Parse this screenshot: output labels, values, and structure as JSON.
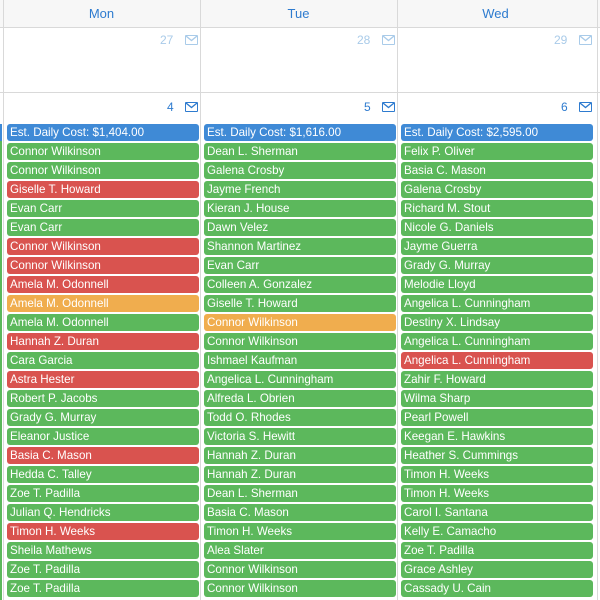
{
  "days": [
    {
      "name": "Mon",
      "d1": "27",
      "d2": "4",
      "cost": "Est. Daily Cost: $1,404.00",
      "shifts": [
        {
          "name": "Connor Wilkinson",
          "color": "green"
        },
        {
          "name": "Connor Wilkinson",
          "color": "green"
        },
        {
          "name": "Giselle T. Howard",
          "color": "red"
        },
        {
          "name": "Evan Carr",
          "color": "green"
        },
        {
          "name": "Evan Carr",
          "color": "green"
        },
        {
          "name": "Connor Wilkinson",
          "color": "red"
        },
        {
          "name": "Connor Wilkinson",
          "color": "red"
        },
        {
          "name": "Amela M. Odonnell",
          "color": "red"
        },
        {
          "name": "Amela M. Odonnell",
          "color": "orange"
        },
        {
          "name": "Amela M. Odonnell",
          "color": "green"
        },
        {
          "name": "Hannah Z. Duran",
          "color": "red"
        },
        {
          "name": "Cara Garcia",
          "color": "green"
        },
        {
          "name": "Astra Hester",
          "color": "red"
        },
        {
          "name": "Robert P. Jacobs",
          "color": "green"
        },
        {
          "name": "Grady G. Murray",
          "color": "green"
        },
        {
          "name": "Eleanor Justice",
          "color": "green"
        },
        {
          "name": "Basia C. Mason",
          "color": "red"
        },
        {
          "name": "Hedda C. Talley",
          "color": "green"
        },
        {
          "name": "Zoe T. Padilla",
          "color": "green"
        },
        {
          "name": "Julian Q. Hendricks",
          "color": "green"
        },
        {
          "name": "Timon H. Weeks",
          "color": "red"
        },
        {
          "name": "Sheila Mathews",
          "color": "green"
        },
        {
          "name": "Zoe T. Padilla",
          "color": "green"
        },
        {
          "name": "Zoe T. Padilla",
          "color": "green"
        }
      ]
    },
    {
      "name": "Tue",
      "d1": "28",
      "d2": "5",
      "cost": "Est. Daily Cost: $1,616.00",
      "shifts": [
        {
          "name": "Dean L. Sherman",
          "color": "green"
        },
        {
          "name": "Galena Crosby",
          "color": "green"
        },
        {
          "name": "Jayme French",
          "color": "green"
        },
        {
          "name": "Kieran J. House",
          "color": "green"
        },
        {
          "name": "Dawn Velez",
          "color": "green"
        },
        {
          "name": "Shannon Martinez",
          "color": "green"
        },
        {
          "name": "Evan Carr",
          "color": "green"
        },
        {
          "name": "Colleen A. Gonzalez",
          "color": "green"
        },
        {
          "name": "Giselle T. Howard",
          "color": "green"
        },
        {
          "name": "Connor Wilkinson",
          "color": "orange"
        },
        {
          "name": "Connor Wilkinson",
          "color": "green"
        },
        {
          "name": "Ishmael Kaufman",
          "color": "green"
        },
        {
          "name": "Angelica L. Cunningham",
          "color": "green"
        },
        {
          "name": "Alfreda L. Obrien",
          "color": "green"
        },
        {
          "name": "Todd O. Rhodes",
          "color": "green"
        },
        {
          "name": "Victoria S. Hewitt",
          "color": "green"
        },
        {
          "name": "Hannah Z. Duran",
          "color": "green"
        },
        {
          "name": "Hannah Z. Duran",
          "color": "green"
        },
        {
          "name": "Dean L. Sherman",
          "color": "green"
        },
        {
          "name": "Basia C. Mason",
          "color": "green"
        },
        {
          "name": "Timon H. Weeks",
          "color": "green"
        },
        {
          "name": "Alea Slater",
          "color": "green"
        },
        {
          "name": "Connor Wilkinson",
          "color": "green"
        },
        {
          "name": "Connor Wilkinson",
          "color": "green"
        }
      ]
    },
    {
      "name": "Wed",
      "d1": "29",
      "d2": "6",
      "cost": "Est. Daily Cost: $2,595.00",
      "shifts": [
        {
          "name": "Felix P. Oliver",
          "color": "green"
        },
        {
          "name": "Basia C. Mason",
          "color": "green"
        },
        {
          "name": "Galena Crosby",
          "color": "green"
        },
        {
          "name": "Richard M. Stout",
          "color": "green"
        },
        {
          "name": "Nicole G. Daniels",
          "color": "green"
        },
        {
          "name": "Jayme Guerra",
          "color": "green"
        },
        {
          "name": "Grady G. Murray",
          "color": "green"
        },
        {
          "name": "Melodie Lloyd",
          "color": "green"
        },
        {
          "name": "Angelica L. Cunningham",
          "color": "green"
        },
        {
          "name": "Destiny X. Lindsay",
          "color": "green"
        },
        {
          "name": "Angelica L. Cunningham",
          "color": "green"
        },
        {
          "name": "Angelica L. Cunningham",
          "color": "red"
        },
        {
          "name": "Zahir F. Howard",
          "color": "green"
        },
        {
          "name": "Wilma Sharp",
          "color": "green"
        },
        {
          "name": "Pearl Powell",
          "color": "green"
        },
        {
          "name": "Keegan E. Hawkins",
          "color": "green"
        },
        {
          "name": "Heather S. Cummings",
          "color": "green"
        },
        {
          "name": "Timon H. Weeks",
          "color": "green"
        },
        {
          "name": "Timon H. Weeks",
          "color": "green"
        },
        {
          "name": "Carol I. Santana",
          "color": "green"
        },
        {
          "name": "Kelly E. Camacho",
          "color": "green"
        },
        {
          "name": "Zoe T. Padilla",
          "color": "green"
        },
        {
          "name": "Grace Ashley",
          "color": "green"
        },
        {
          "name": "Cassady U. Cain",
          "color": "green"
        }
      ]
    }
  ],
  "colors": {
    "green": "#5cb85c",
    "red": "#d9534f",
    "orange": "#f0ad4e",
    "blue": "#3f8ad6",
    "accent": "#2e7bcf"
  },
  "icons": {
    "envelope": "envelope-icon"
  }
}
